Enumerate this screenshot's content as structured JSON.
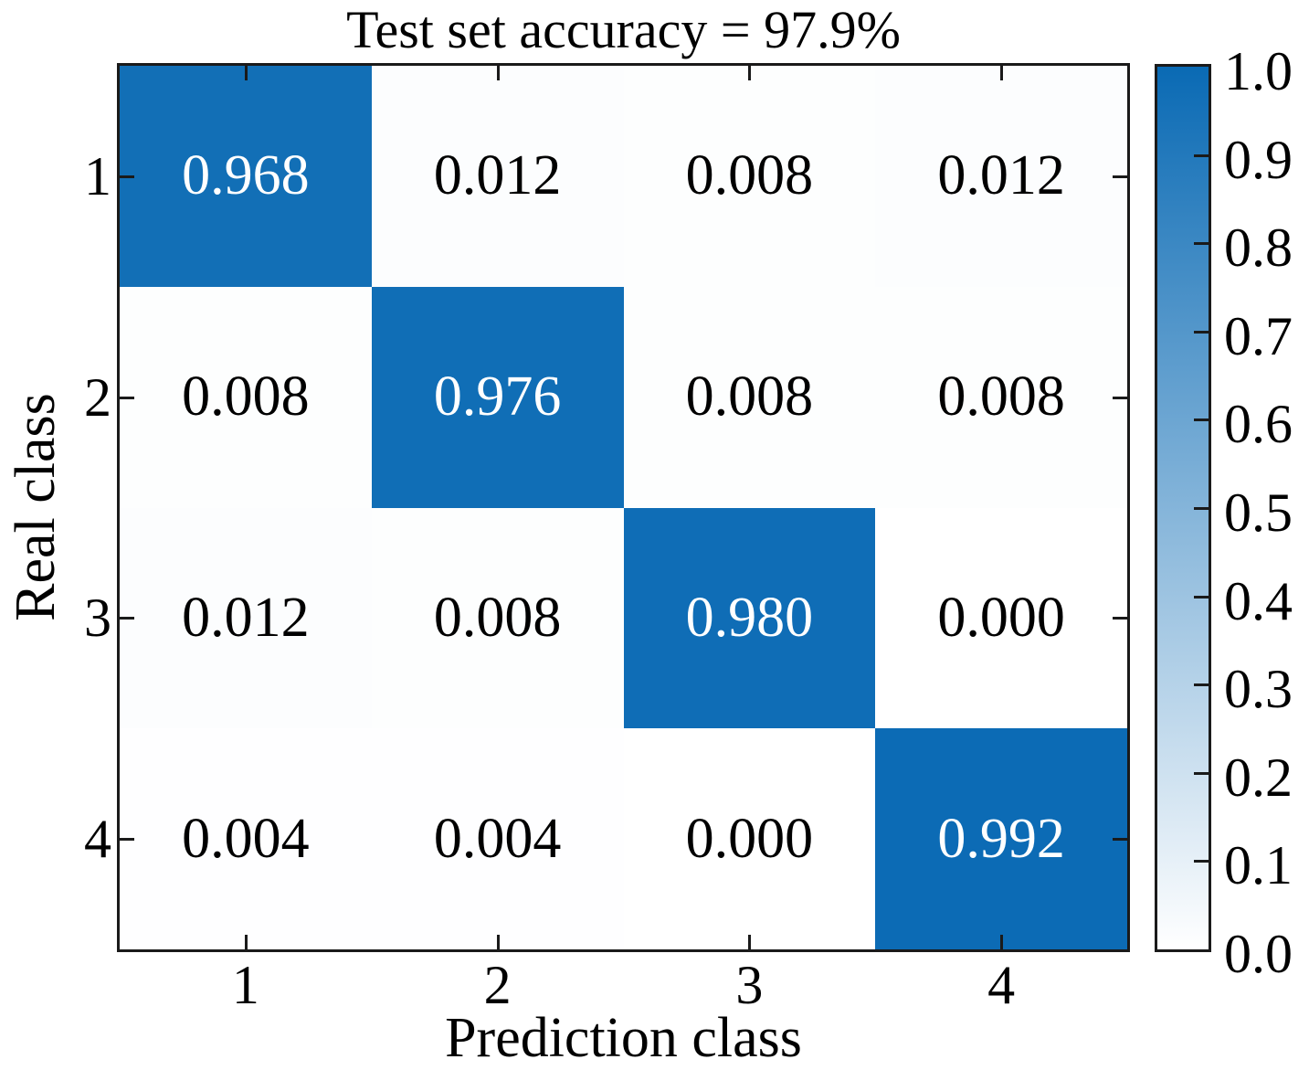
{
  "title": "Test set accuracy = 97.9%",
  "chart_data": {
    "type": "heatmap",
    "title": "Test set accuracy = 97.9%",
    "xlabel": "Prediction class",
    "ylabel": "Real class",
    "x_tick_labels": [
      "1",
      "2",
      "3",
      "4"
    ],
    "y_tick_labels": [
      "1",
      "2",
      "3",
      "4"
    ],
    "matrix": [
      [
        0.968,
        0.012,
        0.008,
        0.012
      ],
      [
        0.008,
        0.976,
        0.008,
        0.008
      ],
      [
        0.012,
        0.008,
        0.98,
        0.0
      ],
      [
        0.004,
        0.004,
        0.0,
        0.992
      ]
    ],
    "cell_labels": [
      [
        "0.968",
        "0.012",
        "0.008",
        "0.012"
      ],
      [
        "0.008",
        "0.976",
        "0.008",
        "0.008"
      ],
      [
        "0.012",
        "0.008",
        "0.980",
        "0.000"
      ],
      [
        "0.004",
        "0.004",
        "0.000",
        "0.992"
      ]
    ],
    "colorbar_tick_labels": [
      "1.0",
      "0.9",
      "0.8",
      "0.7",
      "0.6",
      "0.5",
      "0.4",
      "0.3",
      "0.2",
      "0.1",
      "0.0"
    ],
    "colormap": {
      "min": 0.0,
      "max": 1.0,
      "min_color": "#FFFFFF",
      "max_color": "#0A6AB4"
    },
    "value_range": [
      0.0,
      1.0
    ],
    "grid": false,
    "legend_position": "right-colorbar",
    "colors": {
      "axis": "#1a1a1a",
      "text_on_dark": "#FFFFFF",
      "text_on_light": "#000000"
    }
  }
}
